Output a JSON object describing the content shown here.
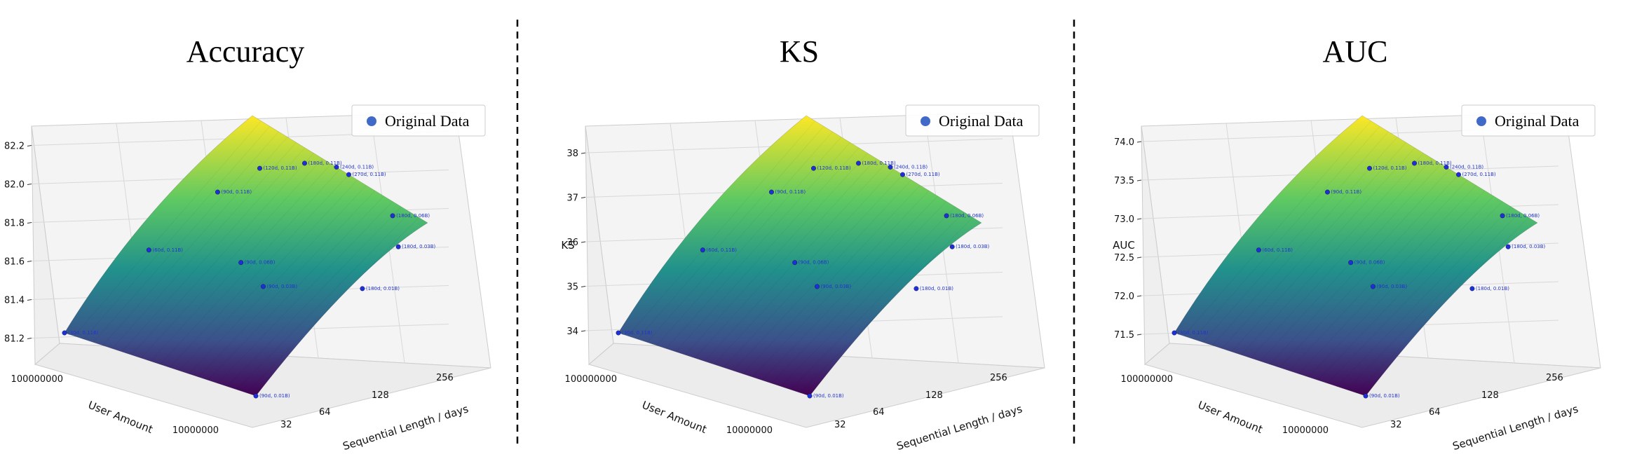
{
  "chart_data": [
    {
      "type": "surface3d",
      "title": "Accuracy",
      "xlabel": "User Amount",
      "ylabel": "Sequential Length / days",
      "zlabel": "",
      "x_ticks": [
        "100000000",
        "10000000"
      ],
      "y_ticks": [
        "32",
        "64",
        "128",
        "256"
      ],
      "z_ticks": [
        "81.2",
        "81.4",
        "81.6",
        "81.8",
        "82.0",
        "82.2"
      ],
      "zlim": [
        81.1,
        82.3
      ],
      "legend": "Original Data",
      "points": [
        {
          "label": "(90d, 0.01B)",
          "z": 81.14
        },
        {
          "label": "(30d, 0.11B)",
          "z": 81.2
        },
        {
          "label": "(90d, 0.03B)",
          "z": 81.63
        },
        {
          "label": "(90d, 0.06B)",
          "z": 81.74
        },
        {
          "label": "(180d, 0.01B)",
          "z": 81.8
        },
        {
          "label": "(60d, 0.11B)",
          "z": 81.92
        },
        {
          "label": "(180d, 0.03B)",
          "z": 81.96
        },
        {
          "label": "(90d, 0.11B)",
          "z": 82.03
        },
        {
          "label": "(180d, 0.06B)",
          "z": 82.08
        },
        {
          "label": "(120d, 0.11B)",
          "z": 82.12
        },
        {
          "label": "(180d, 0.11B)",
          "z": 82.2
        },
        {
          "label": "(270d, 0.11B)",
          "z": 82.28
        },
        {
          "label": "(240d, 0.11B)",
          "z": 82.27
        }
      ]
    },
    {
      "type": "surface3d",
      "title": "KS",
      "xlabel": "User Amount",
      "ylabel": "Sequential Length / days",
      "zlabel": "KS",
      "x_ticks": [
        "100000000",
        "10000000"
      ],
      "y_ticks": [
        "32",
        "64",
        "128",
        "256"
      ],
      "z_ticks": [
        "34",
        "35",
        "36",
        "37",
        "38"
      ],
      "zlim": [
        33.4,
        38.6
      ],
      "legend": "Original Data",
      "points": [
        {
          "label": "(90d, 0.01B)",
          "z": 33.5
        },
        {
          "label": "(30d, 0.11B)",
          "z": 35.3
        },
        {
          "label": "(90d, 0.03B)",
          "z": 36.7
        },
        {
          "label": "(90d, 0.06B)",
          "z": 36.9
        },
        {
          "label": "(180d, 0.01B)",
          "z": 37.3
        },
        {
          "label": "(60d, 0.11B)",
          "z": 37.4
        },
        {
          "label": "(180d, 0.03B)",
          "z": 37.8
        },
        {
          "label": "(90d, 0.11B)",
          "z": 37.9
        },
        {
          "label": "(180d, 0.06B)",
          "z": 38.1
        },
        {
          "label": "(120d, 0.11B)",
          "z": 38.0
        },
        {
          "label": "(180d, 0.11B)",
          "z": 38.3
        },
        {
          "label": "(270d, 0.11B)",
          "z": 38.5
        },
        {
          "label": "(240d, 0.11B)",
          "z": 38.4
        }
      ]
    },
    {
      "type": "surface3d",
      "title": "AUC",
      "xlabel": "User Amount",
      "ylabel": "Sequential Length / days",
      "zlabel": "AUC",
      "x_ticks": [
        "100000000",
        "10000000"
      ],
      "y_ticks": [
        "32",
        "64",
        "128",
        "256"
      ],
      "z_ticks": [
        "71.5",
        "72.0",
        "72.5",
        "73.0",
        "73.5",
        "74.0"
      ],
      "zlim": [
        71.2,
        74.2
      ],
      "legend": "Original Data",
      "points": [
        {
          "label": "(90d, 0.01B)",
          "z": 71.2
        },
        {
          "label": "(30d, 0.11B)",
          "z": 72.4
        },
        {
          "label": "(90d, 0.03B)",
          "z": 73.0
        },
        {
          "label": "(90d, 0.06B)",
          "z": 73.15
        },
        {
          "label": "(180d, 0.01B)",
          "z": 73.35
        },
        {
          "label": "(60d, 0.11B)",
          "z": 73.55
        },
        {
          "label": "(180d, 0.03B)",
          "z": 73.7
        },
        {
          "label": "(90d, 0.11B)",
          "z": 73.8
        },
        {
          "label": "(180d, 0.06B)",
          "z": 73.9
        },
        {
          "label": "(120d, 0.11B)",
          "z": 73.95
        },
        {
          "label": "(180d, 0.11B)",
          "z": 74.05
        },
        {
          "label": "(270d, 0.11B)",
          "z": 74.15
        },
        {
          "label": "(240d, 0.11B)",
          "z": 74.12
        }
      ]
    }
  ]
}
